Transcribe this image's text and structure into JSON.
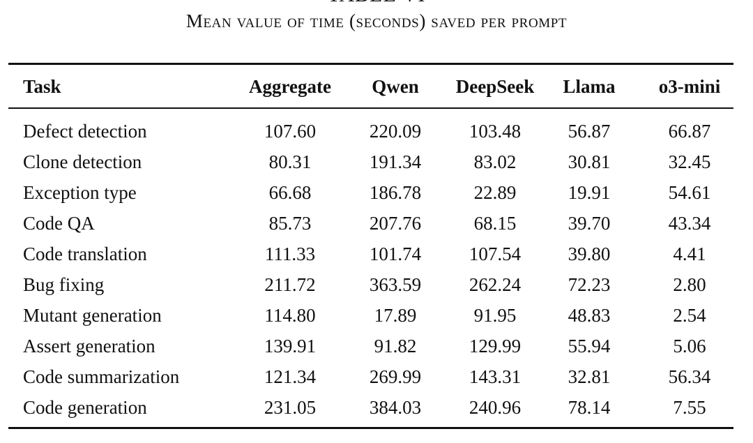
{
  "caption": {
    "label": "TABLE VI",
    "title": "Mean value of time (seconds) saved per prompt"
  },
  "table": {
    "columns": [
      "Task",
      "Aggregate",
      "Qwen",
      "DeepSeek",
      "Llama",
      "o3-mini"
    ],
    "rows": [
      [
        "Defect detection",
        "107.60",
        "220.09",
        "103.48",
        "56.87",
        "66.87"
      ],
      [
        "Clone detection",
        "80.31",
        "191.34",
        "83.02",
        "30.81",
        "32.45"
      ],
      [
        "Exception type",
        "66.68",
        "186.78",
        "22.89",
        "19.91",
        "54.61"
      ],
      [
        "Code QA",
        "85.73",
        "207.76",
        "68.15",
        "39.70",
        "43.34"
      ],
      [
        "Code translation",
        "111.33",
        "101.74",
        "107.54",
        "39.80",
        "4.41"
      ],
      [
        "Bug fixing",
        "211.72",
        "363.59",
        "262.24",
        "72.23",
        "2.80"
      ],
      [
        "Mutant generation",
        "114.80",
        "17.89",
        "91.95",
        "48.83",
        "2.54"
      ],
      [
        "Assert generation",
        "139.91",
        "91.82",
        "129.99",
        "55.94",
        "5.06"
      ],
      [
        "Code summarization",
        "121.34",
        "269.99",
        "143.31",
        "32.81",
        "56.34"
      ],
      [
        "Code generation",
        "231.05",
        "384.03",
        "240.96",
        "78.14",
        "7.55"
      ]
    ]
  }
}
